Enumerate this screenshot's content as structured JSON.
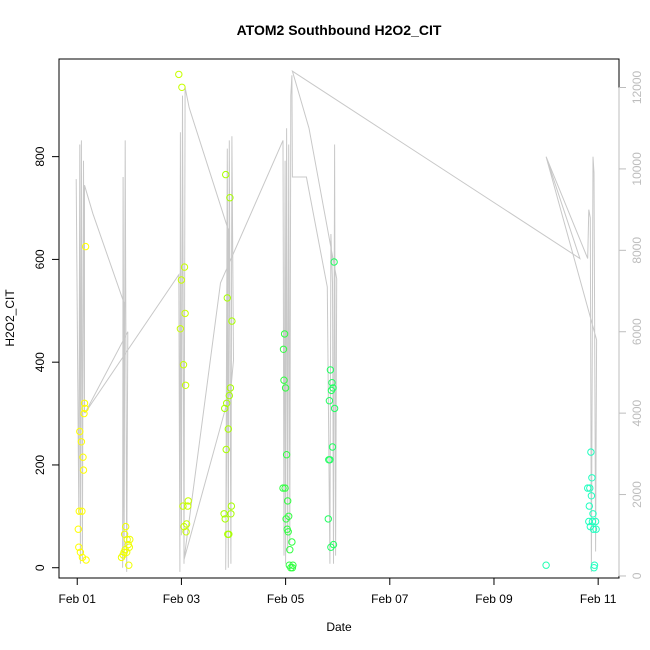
{
  "chart_data": {
    "type": "scatter",
    "title": "ATOM2 Southbound H2O2_CIT",
    "xlabel": "Date",
    "ylabel": "H2O2_CIT",
    "x_unit": "days since Feb 01 (tick positions)",
    "xlim": [
      -0.35,
      10.4
    ],
    "ylim": [
      -20,
      990
    ],
    "y2lim": [
      -50,
      12700
    ],
    "x_ticks": [
      {
        "value": 0,
        "label": "Feb 01"
      },
      {
        "value": 2,
        "label": "Feb 03"
      },
      {
        "value": 4,
        "label": "Feb 05"
      },
      {
        "value": 6,
        "label": "Feb 07"
      },
      {
        "value": 8,
        "label": "Feb 09"
      },
      {
        "value": 10,
        "label": "Feb 11"
      }
    ],
    "y_ticks": [
      0,
      200,
      400,
      600,
      800
    ],
    "y2_ticks": [
      0,
      2000,
      4000,
      6000,
      8000,
      10000,
      12000
    ],
    "grid": false,
    "legend": "none",
    "colors": {
      "altitude_line": "#c8c8c8",
      "right_axis": "#bdbdbd",
      "axis": "#000000"
    },
    "series": [
      {
        "points": [
          {
            "x": 0.02,
            "y": 75,
            "color": "#ffff00"
          },
          {
            "x": 0.03,
            "y": 40,
            "color": "#ffff00"
          },
          {
            "x": 0.04,
            "y": 110,
            "color": "#ffff00"
          },
          {
            "x": 0.05,
            "y": 265,
            "color": "#ffff00"
          },
          {
            "x": 0.06,
            "y": 30,
            "color": "#ffff00"
          },
          {
            "x": 0.08,
            "y": 245,
            "color": "#ffff00"
          },
          {
            "x": 0.09,
            "y": 110,
            "color": "#ffff00"
          },
          {
            "x": 0.1,
            "y": 20,
            "color": "#ffff00"
          },
          {
            "x": 0.11,
            "y": 215,
            "color": "#ffff00"
          },
          {
            "x": 0.12,
            "y": 190,
            "color": "#ffff00"
          },
          {
            "x": 0.13,
            "y": 300,
            "color": "#ffff00"
          },
          {
            "x": 0.14,
            "y": 320,
            "color": "#ffff00"
          },
          {
            "x": 0.15,
            "y": 310,
            "color": "#ffff00"
          },
          {
            "x": 0.16,
            "y": 625,
            "color": "#ffff00"
          },
          {
            "x": 0.17,
            "y": 15,
            "color": "#ffff00"
          },
          {
            "x": 0.85,
            "y": 20,
            "color": "#f0ff00"
          },
          {
            "x": 0.88,
            "y": 25,
            "color": "#f0ff00"
          },
          {
            "x": 0.9,
            "y": 30,
            "color": "#f0ff00"
          },
          {
            "x": 0.91,
            "y": 65,
            "color": "#f0ff00"
          },
          {
            "x": 0.92,
            "y": 35,
            "color": "#f0ff00"
          },
          {
            "x": 0.93,
            "y": 80,
            "color": "#f0ff00"
          },
          {
            "x": 0.95,
            "y": 30,
            "color": "#f0ff00"
          },
          {
            "x": 0.96,
            "y": 55,
            "color": "#f0ff00"
          },
          {
            "x": 0.98,
            "y": 45,
            "color": "#f0ff00"
          },
          {
            "x": 0.99,
            "y": 5,
            "color": "#f0ff00"
          },
          {
            "x": 1.0,
            "y": 40,
            "color": "#f0ff00"
          },
          {
            "x": 1.01,
            "y": 55,
            "color": "#f0ff00"
          },
          {
            "x": 1.95,
            "y": 960,
            "color": "#c8ff00"
          },
          {
            "x": 1.98,
            "y": 465,
            "color": "#c8ff00"
          },
          {
            "x": 2.0,
            "y": 560,
            "color": "#c8ff00"
          },
          {
            "x": 2.01,
            "y": 935,
            "color": "#c8ff00"
          },
          {
            "x": 2.03,
            "y": 120,
            "color": "#c8ff00"
          },
          {
            "x": 2.04,
            "y": 395,
            "color": "#c8ff00"
          },
          {
            "x": 2.05,
            "y": 80,
            "color": "#c8ff00"
          },
          {
            "x": 2.06,
            "y": 585,
            "color": "#c8ff00"
          },
          {
            "x": 2.07,
            "y": 495,
            "color": "#c8ff00"
          },
          {
            "x": 2.08,
            "y": 355,
            "color": "#c8ff00"
          },
          {
            "x": 2.09,
            "y": 70,
            "color": "#c8ff00"
          },
          {
            "x": 2.1,
            "y": 85,
            "color": "#c8ff00"
          },
          {
            "x": 2.12,
            "y": 120,
            "color": "#c8ff00"
          },
          {
            "x": 2.13,
            "y": 130,
            "color": "#c8ff00"
          },
          {
            "x": 2.82,
            "y": 105,
            "color": "#a8ff00"
          },
          {
            "x": 2.83,
            "y": 310,
            "color": "#a8ff00"
          },
          {
            "x": 2.84,
            "y": 95,
            "color": "#a8ff00"
          },
          {
            "x": 2.85,
            "y": 765,
            "color": "#a8ff00"
          },
          {
            "x": 2.86,
            "y": 230,
            "color": "#a8ff00"
          },
          {
            "x": 2.87,
            "y": 320,
            "color": "#a8ff00"
          },
          {
            "x": 2.88,
            "y": 525,
            "color": "#a8ff00"
          },
          {
            "x": 2.89,
            "y": 65,
            "color": "#a8ff00"
          },
          {
            "x": 2.9,
            "y": 270,
            "color": "#a8ff00"
          },
          {
            "x": 2.91,
            "y": 65,
            "color": "#a8ff00"
          },
          {
            "x": 2.92,
            "y": 335,
            "color": "#a8ff00"
          },
          {
            "x": 2.93,
            "y": 720,
            "color": "#a8ff00"
          },
          {
            "x": 2.94,
            "y": 350,
            "color": "#a8ff00"
          },
          {
            "x": 2.95,
            "y": 105,
            "color": "#a8ff00"
          },
          {
            "x": 2.96,
            "y": 120,
            "color": "#a8ff00"
          },
          {
            "x": 2.97,
            "y": 480,
            "color": "#a8ff00"
          },
          {
            "x": 3.95,
            "y": 155,
            "color": "#30ff40"
          },
          {
            "x": 3.96,
            "y": 425,
            "color": "#30ff40"
          },
          {
            "x": 3.97,
            "y": 365,
            "color": "#30ff40"
          },
          {
            "x": 3.98,
            "y": 455,
            "color": "#30ff40"
          },
          {
            "x": 3.99,
            "y": 155,
            "color": "#30ff40"
          },
          {
            "x": 4.0,
            "y": 350,
            "color": "#30ff40"
          },
          {
            "x": 4.01,
            "y": 95,
            "color": "#30ff40"
          },
          {
            "x": 4.02,
            "y": 220,
            "color": "#30ff40"
          },
          {
            "x": 4.03,
            "y": 75,
            "color": "#30ff40"
          },
          {
            "x": 4.04,
            "y": 130,
            "color": "#30ff40"
          },
          {
            "x": 4.05,
            "y": 70,
            "color": "#30ff40"
          },
          {
            "x": 4.06,
            "y": 100,
            "color": "#30ff40"
          },
          {
            "x": 4.07,
            "y": 5,
            "color": "#30ff40"
          },
          {
            "x": 4.08,
            "y": 35,
            "color": "#30ff40"
          },
          {
            "x": 4.1,
            "y": 0,
            "color": "#30ff40"
          },
          {
            "x": 4.12,
            "y": 50,
            "color": "#30ff40"
          },
          {
            "x": 4.13,
            "y": 0,
            "color": "#30ff40"
          },
          {
            "x": 4.14,
            "y": 5,
            "color": "#30ff40"
          },
          {
            "x": 4.82,
            "y": 95,
            "color": "#20ff60"
          },
          {
            "x": 4.83,
            "y": 210,
            "color": "#20ff60"
          },
          {
            "x": 4.84,
            "y": 325,
            "color": "#20ff60"
          },
          {
            "x": 4.85,
            "y": 210,
            "color": "#20ff60"
          },
          {
            "x": 4.86,
            "y": 385,
            "color": "#20ff60"
          },
          {
            "x": 4.87,
            "y": 40,
            "color": "#20ff60"
          },
          {
            "x": 4.88,
            "y": 345,
            "color": "#20ff60"
          },
          {
            "x": 4.89,
            "y": 360,
            "color": "#20ff60"
          },
          {
            "x": 4.9,
            "y": 235,
            "color": "#20ff60"
          },
          {
            "x": 4.91,
            "y": 350,
            "color": "#20ff60"
          },
          {
            "x": 4.92,
            "y": 45,
            "color": "#20ff60"
          },
          {
            "x": 4.93,
            "y": 595,
            "color": "#20ff60"
          },
          {
            "x": 4.94,
            "y": 310,
            "color": "#20ff60"
          },
          {
            "x": 9.0,
            "y": 5,
            "color": "#20ffb0"
          },
          {
            "x": 9.8,
            "y": 155,
            "color": "#20ffc0"
          },
          {
            "x": 9.82,
            "y": 90,
            "color": "#20ffc0"
          },
          {
            "x": 9.83,
            "y": 120,
            "color": "#20ffc0"
          },
          {
            "x": 9.84,
            "y": 155,
            "color": "#20ffc0"
          },
          {
            "x": 9.85,
            "y": 80,
            "color": "#20ffc0"
          },
          {
            "x": 9.86,
            "y": 225,
            "color": "#20ffc0"
          },
          {
            "x": 9.87,
            "y": 140,
            "color": "#20ffc0"
          },
          {
            "x": 9.88,
            "y": 175,
            "color": "#20ffc0"
          },
          {
            "x": 9.89,
            "y": 90,
            "color": "#20ffc0"
          },
          {
            "x": 9.9,
            "y": 105,
            "color": "#20ffc0"
          },
          {
            "x": 9.91,
            "y": 75,
            "color": "#20ffc0"
          },
          {
            "x": 9.92,
            "y": 0,
            "color": "#20ffc0"
          },
          {
            "x": 9.93,
            "y": 5,
            "color": "#20ffc0"
          },
          {
            "x": 9.95,
            "y": 90,
            "color": "#20ffc0"
          },
          {
            "x": 9.96,
            "y": 75,
            "color": "#20ffc0"
          }
        ]
      },
      {
        "axis": "right",
        "line": [
          [
            -0.02,
            9750
          ],
          [
            0.03,
            1500
          ],
          [
            0.05,
            10600
          ],
          [
            0.06,
            300
          ],
          [
            0.08,
            10700
          ],
          [
            0.1,
            400
          ],
          [
            0.12,
            10200
          ],
          [
            0.14,
            4000
          ],
          [
            0.14,
            9600
          ],
          [
            0.3,
            8900
          ],
          [
            0.9,
            6700
          ],
          [
            0.87,
            200
          ],
          [
            0.88,
            9800
          ],
          [
            0.9,
            400
          ],
          [
            0.92,
            10700
          ],
          [
            0.95,
            100
          ],
          [
            0.97,
            6000
          ],
          [
            0.15,
            4000
          ],
          [
            1.95,
            7400
          ],
          [
            1.97,
            100
          ],
          [
            1.98,
            10900
          ],
          [
            2.0,
            1000
          ],
          [
            2.02,
            11800
          ],
          [
            2.05,
            300
          ],
          [
            2.07,
            12000
          ],
          [
            2.15,
            11500
          ],
          [
            2.9,
            8500
          ],
          [
            2.85,
            150
          ],
          [
            2.88,
            10500
          ],
          [
            2.9,
            200
          ],
          [
            2.92,
            10700
          ],
          [
            2.95,
            300
          ],
          [
            2.97,
            10800
          ],
          [
            3.0,
            5300
          ],
          [
            2.95,
            4600
          ],
          [
            2.05,
            400
          ],
          [
            2.75,
            7200
          ],
          [
            3.95,
            10700
          ],
          [
            3.97,
            500
          ],
          [
            3.99,
            10200
          ],
          [
            4.0,
            300
          ],
          [
            4.02,
            11000
          ],
          [
            4.04,
            600
          ],
          [
            4.06,
            10600
          ],
          [
            4.08,
            800
          ],
          [
            4.1,
            11800
          ],
          [
            4.12,
            12300
          ],
          [
            4.13,
            9800
          ],
          [
            4.4,
            9800
          ],
          [
            4.8,
            7100
          ],
          [
            4.85,
            300
          ],
          [
            4.87,
            8400
          ],
          [
            4.9,
            7200
          ],
          [
            4.92,
            300
          ],
          [
            4.94,
            10600
          ],
          [
            4.96,
            500
          ],
          [
            4.98,
            7300
          ],
          [
            4.45,
            11000
          ],
          [
            4.13,
            12400
          ],
          [
            9.65,
            7800
          ],
          [
            9.0,
            10300
          ],
          [
            9.8,
            7800
          ],
          [
            9.82,
            9000
          ],
          [
            9.85,
            8800
          ],
          [
            9.87,
            100
          ],
          [
            9.9,
            10300
          ],
          [
            9.92,
            9900
          ],
          [
            9.95,
            600
          ],
          [
            9.97,
            5800
          ],
          [
            9.0,
            10300
          ]
        ]
      }
    ]
  }
}
